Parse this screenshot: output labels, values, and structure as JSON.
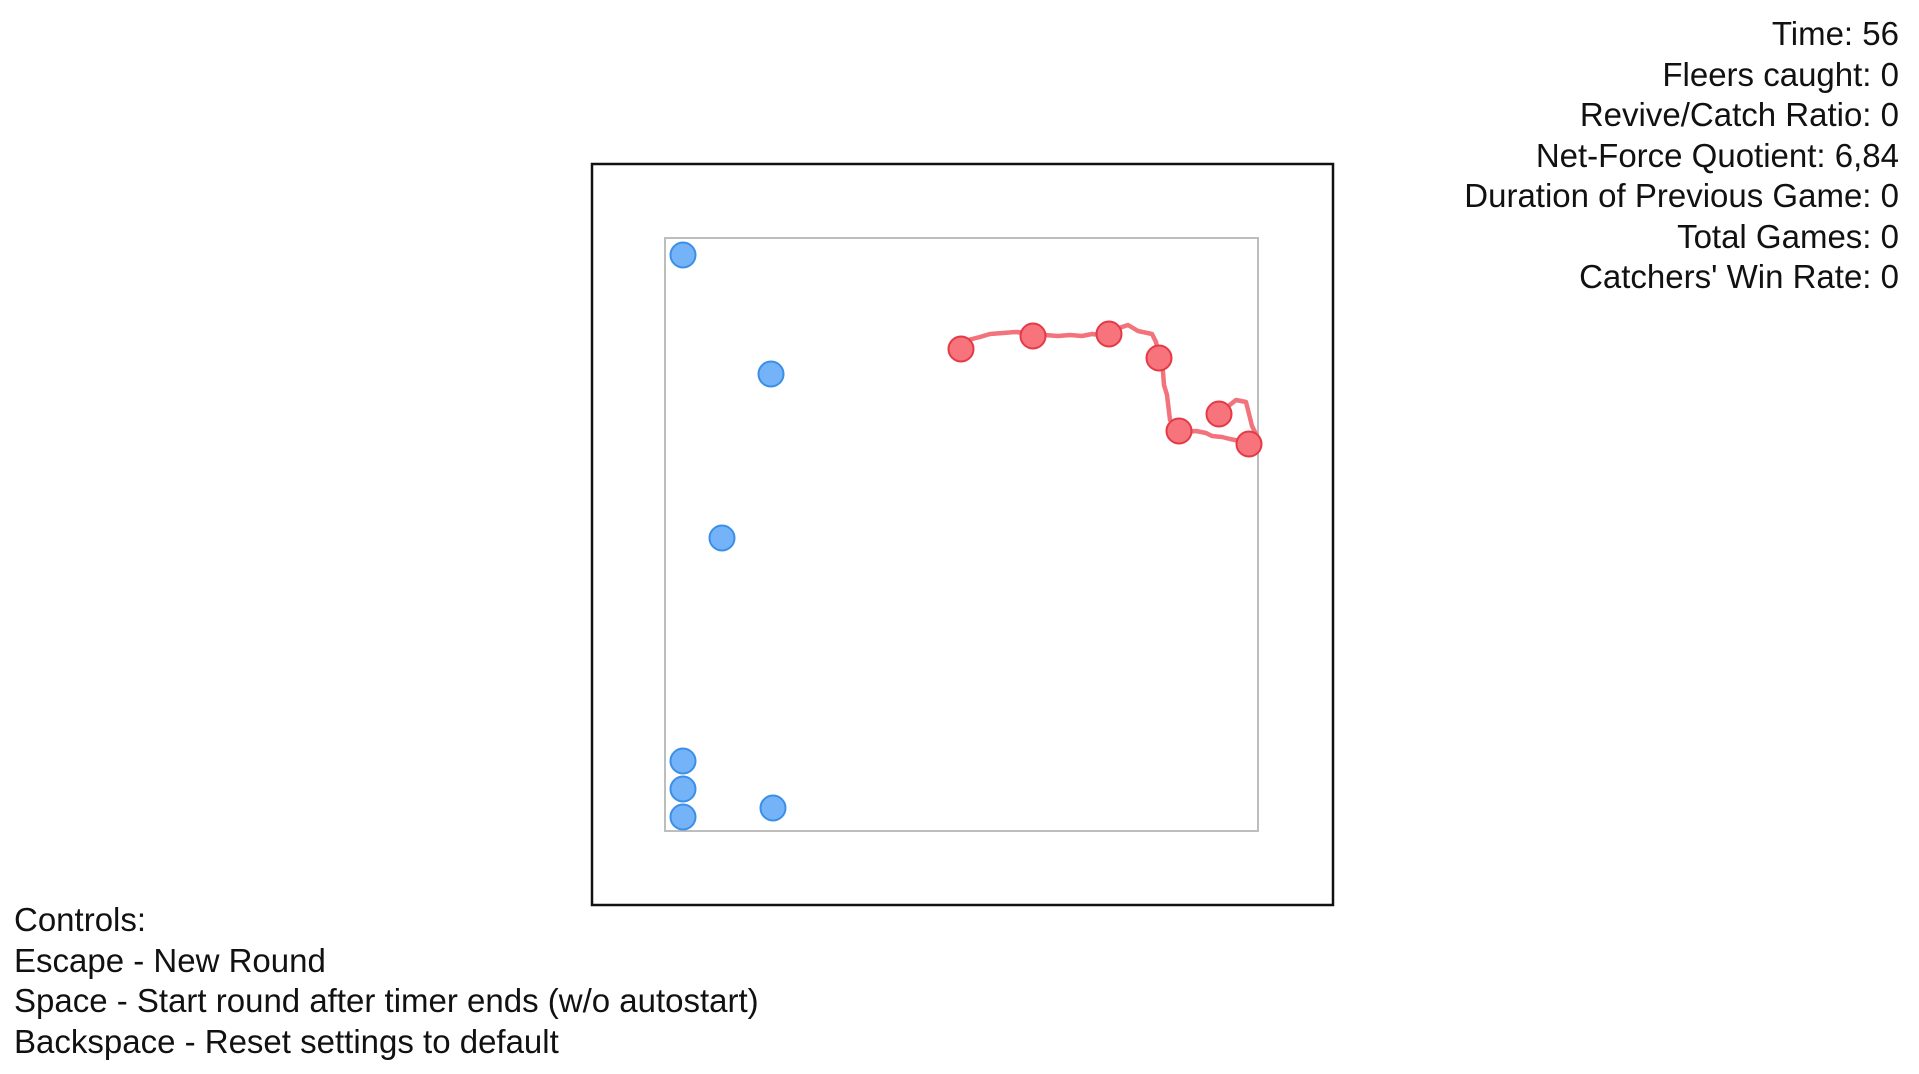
{
  "stats": {
    "time_label": "Time: ",
    "time_value": "56",
    "fleers_label": "Fleers caught: ",
    "fleers_value": "0",
    "ratio_label": "Revive/Catch Ratio: ",
    "ratio_value": "0",
    "quotient_label": "Net-Force Quotient: ",
    "quotient_value": "6,84",
    "duration_label": "Duration of Previous Game: ",
    "duration_value": "0",
    "games_label": "Total Games: ",
    "games_value": "0",
    "winrate_label": "Catchers' Win Rate: ",
    "winrate_value": "0"
  },
  "controls": {
    "title": "Controls:",
    "line1": "Escape - New Round",
    "line2": "Space - Start round after timer ends (w/o autostart)",
    "line3": "Backspace - Reset settings to default"
  },
  "colors": {
    "fleer_fill": "#74b3f7",
    "fleer_stroke": "#3b8fe6",
    "catcher_fill": "#f7747c",
    "catcher_stroke": "#e53946",
    "trail": "#f2737b",
    "outer_border": "#111111",
    "inner_border": "#bdbdbd"
  },
  "agents": {
    "fleers": [
      {
        "id": "fleer-1"
      },
      {
        "id": "fleer-2"
      },
      {
        "id": "fleer-3"
      },
      {
        "id": "fleer-4"
      },
      {
        "id": "fleer-5"
      },
      {
        "id": "fleer-6"
      },
      {
        "id": "fleer-7"
      }
    ],
    "catchers": [
      {
        "id": "catcher-1"
      },
      {
        "id": "catcher-2"
      },
      {
        "id": "catcher-3"
      },
      {
        "id": "catcher-4"
      },
      {
        "id": "catcher-5"
      },
      {
        "id": "catcher-6"
      },
      {
        "id": "catcher-7"
      }
    ]
  }
}
